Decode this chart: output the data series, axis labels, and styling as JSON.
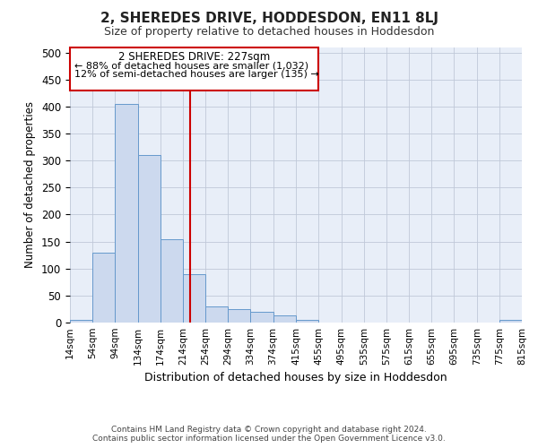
{
  "title": "2, SHEREDES DRIVE, HODDESDON, EN11 8LJ",
  "subtitle": "Size of property relative to detached houses in Hoddesdon",
  "xlabel": "Distribution of detached houses by size in Hoddesdon",
  "ylabel": "Number of detached properties",
  "footer_line1": "Contains HM Land Registry data © Crown copyright and database right 2024.",
  "footer_line2": "Contains public sector information licensed under the Open Government Licence v3.0.",
  "annotation_title": "2 SHEREDES DRIVE: 227sqm",
  "annotation_line1": "← 88% of detached houses are smaller (1,032)",
  "annotation_line2": "12% of semi-detached houses are larger (135) →",
  "property_size": 227,
  "bin_edges": [
    14,
    54,
    94,
    134,
    174,
    214,
    254,
    294,
    334,
    374,
    415,
    455,
    495,
    535,
    575,
    615,
    655,
    695,
    735,
    775,
    815
  ],
  "bar_heights": [
    5,
    130,
    405,
    310,
    155,
    90,
    30,
    25,
    20,
    14,
    5,
    0,
    0,
    0,
    0,
    0,
    0,
    0,
    0,
    5
  ],
  "bar_color": "#ccd9ee",
  "bar_edge_color": "#6699cc",
  "vline_color": "#cc0000",
  "annotation_box_color": "#cc0000",
  "ylim": [
    0,
    510
  ],
  "figure_background": "#ffffff",
  "plot_background": "#e8eef8"
}
